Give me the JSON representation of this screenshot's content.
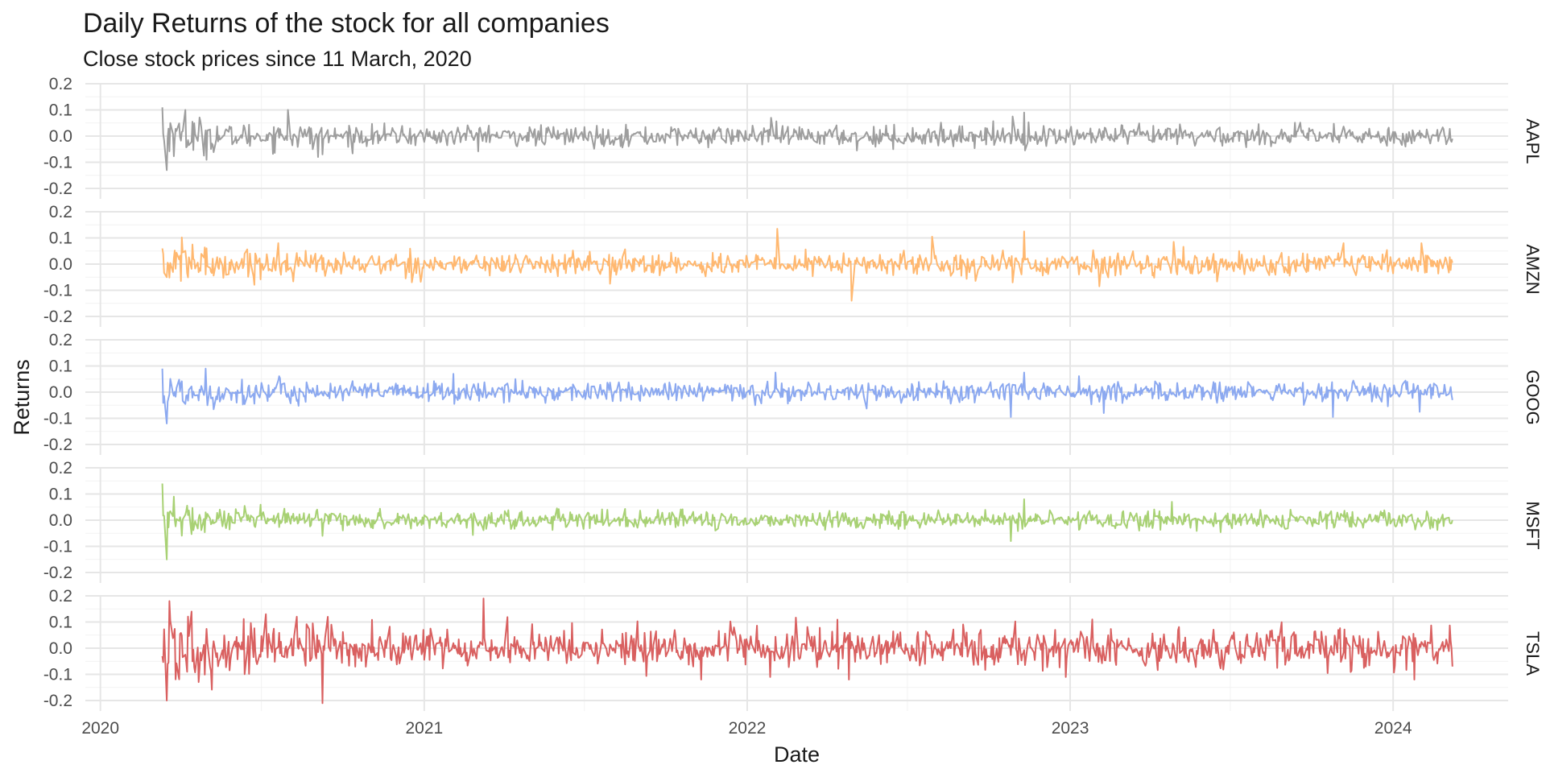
{
  "chart_data": {
    "type": "line",
    "title": "Daily Returns of the stock for all companies",
    "subtitle": "Close stock prices since 11 March, 2020",
    "xlabel": "Date",
    "ylabel": "Returns",
    "x_ticks": [
      "2020",
      "2021",
      "2022",
      "2023",
      "2024"
    ],
    "xlim": [
      "2019-12-15",
      "2024-05-10"
    ],
    "date_range": [
      "2020-03-11",
      "2024-03-08"
    ],
    "y_ticks": [
      "-0.2",
      "-0.1",
      "0.0",
      "0.1",
      "0.2"
    ],
    "ylim": [
      -0.24,
      0.2
    ],
    "facet_by": "company",
    "grid": true,
    "legend": "none",
    "series": [
      {
        "name": "AAPL",
        "color": "#9e9e9e",
        "points": [
          [
            "2020-03-11",
            0.11
          ],
          [
            "2020-03-16",
            -0.13
          ],
          [
            "2020-03-20",
            0.05
          ],
          [
            "2020-04-06",
            0.1
          ],
          [
            "2020-05-10",
            -0.03
          ],
          [
            "2020-07-31",
            0.1
          ],
          [
            "2020-09-03",
            -0.08
          ],
          [
            "2020-09-08",
            -0.07
          ],
          [
            "2021-01-27",
            -0.035
          ],
          [
            "2021-03-15",
            0.04
          ],
          [
            "2021-09-10",
            -0.03
          ],
          [
            "2022-01-28",
            0.07
          ],
          [
            "2022-05-05",
            -0.055
          ],
          [
            "2022-06-15",
            -0.05
          ],
          [
            "2022-10-28",
            0.075
          ],
          [
            "2022-11-10",
            0.09
          ],
          [
            "2023-05-05",
            0.045
          ],
          [
            "2023-11-01",
            -0.025
          ],
          [
            "2024-03-08",
            -0.01
          ]
        ]
      },
      {
        "name": "AMZN",
        "color": "#ffb870",
        "points": [
          [
            "2020-03-11",
            0.06
          ],
          [
            "2020-03-16",
            -0.05
          ],
          [
            "2020-04-14",
            0.075
          ],
          [
            "2020-07-20",
            0.08
          ],
          [
            "2021-02-03",
            -0.02
          ],
          [
            "2021-07-30",
            -0.075
          ],
          [
            "2022-02-04",
            0.135
          ],
          [
            "2022-04-29",
            -0.14
          ],
          [
            "2022-07-29",
            0.105
          ],
          [
            "2022-10-28",
            -0.07
          ],
          [
            "2022-11-10",
            0.125
          ],
          [
            "2023-02-03",
            -0.085
          ],
          [
            "2023-04-28",
            0.085
          ],
          [
            "2023-11-06",
            0.08
          ],
          [
            "2024-02-02",
            0.08
          ],
          [
            "2024-03-08",
            0.005
          ]
        ]
      },
      {
        "name": "GOOG",
        "color": "#8ca9f0",
        "points": [
          [
            "2020-03-11",
            0.09
          ],
          [
            "2020-03-16",
            -0.12
          ],
          [
            "2020-04-29",
            0.09
          ],
          [
            "2021-02-03",
            0.07
          ],
          [
            "2022-02-02",
            0.075
          ],
          [
            "2022-10-26",
            -0.095
          ],
          [
            "2022-11-10",
            0.075
          ],
          [
            "2023-02-08",
            -0.08
          ],
          [
            "2023-10-25",
            -0.095
          ],
          [
            "2024-01-31",
            -0.075
          ],
          [
            "2024-03-08",
            -0.03
          ]
        ]
      },
      {
        "name": "MSFT",
        "color": "#a8d174",
        "points": [
          [
            "2020-03-11",
            0.14
          ],
          [
            "2020-03-16",
            -0.15
          ],
          [
            "2020-03-24",
            0.09
          ],
          [
            "2020-09-08",
            -0.06
          ],
          [
            "2022-10-26",
            -0.08
          ],
          [
            "2022-11-10",
            0.08
          ],
          [
            "2023-04-26",
            0.07
          ],
          [
            "2024-03-08",
            0.0
          ]
        ]
      },
      {
        "name": "TSLA",
        "color": "#d96060",
        "points": [
          [
            "2020-03-11",
            -0.03
          ],
          [
            "2020-03-16",
            -0.2
          ],
          [
            "2020-03-19",
            0.18
          ],
          [
            "2020-04-13",
            0.14
          ],
          [
            "2020-07-06",
            0.13
          ],
          [
            "2020-09-08",
            -0.21
          ],
          [
            "2020-09-14",
            0.12
          ],
          [
            "2021-01-08",
            0.075
          ],
          [
            "2021-03-09",
            0.19
          ],
          [
            "2021-11-10",
            -0.12
          ],
          [
            "2022-01-27",
            -0.11
          ],
          [
            "2022-04-26",
            -0.12
          ],
          [
            "2022-12-27",
            -0.11
          ],
          [
            "2023-01-26",
            0.11
          ],
          [
            "2023-10-19",
            -0.095
          ],
          [
            "2024-01-25",
            -0.12
          ],
          [
            "2024-03-08",
            -0.07
          ]
        ]
      }
    ]
  }
}
